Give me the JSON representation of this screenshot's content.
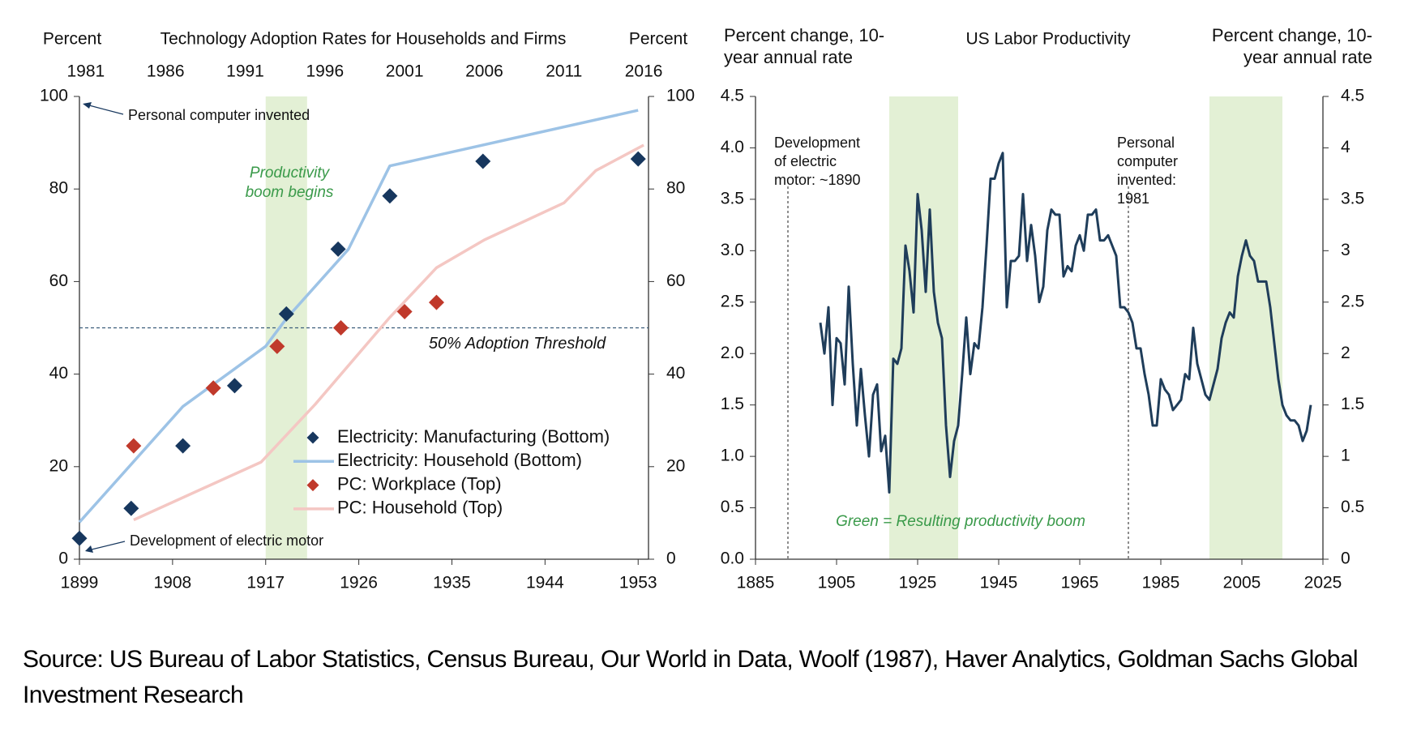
{
  "chart_data": [
    {
      "type": "mixed",
      "title": "Technology Adoption Rates for Households and Firms",
      "ylabel": "Percent",
      "y2label": "Percent",
      "xlim": [
        1899,
        1954
      ],
      "xticks": [
        1899,
        1908,
        1917,
        1926,
        1935,
        1944,
        1953
      ],
      "x2lim": [
        1980.6,
        2016.3
      ],
      "x2ticks": [
        1981,
        1986,
        1991,
        1996,
        2001,
        2006,
        2011,
        2016
      ],
      "ylim": [
        0,
        100
      ],
      "yticks": [
        0,
        20,
        40,
        60,
        80,
        100
      ],
      "y2lim": [
        0,
        100
      ],
      "y2ticks": [
        0,
        20,
        40,
        60,
        80,
        100
      ],
      "legend": "lower right",
      "series": [
        {
          "name": "Electricity: Manufacturing (Bottom)",
          "type": "scatter",
          "color": "#17375e",
          "x": [
            1899,
            1904,
            1909,
            1914,
            1919,
            1924,
            1929,
            1938,
            1953
          ],
          "values": [
            4.5,
            11,
            24.5,
            37.5,
            53,
            67,
            78.5,
            86,
            86.5
          ]
        },
        {
          "name": "Electricity: Household (Bottom)",
          "type": "line",
          "color": "#9dc3e6",
          "x": [
            1899,
            1909,
            1917,
            1919,
            1925,
            1929,
            1953
          ],
          "values": [
            8,
            33,
            46,
            52,
            67,
            85,
            97
          ]
        },
        {
          "name": "PC: Workplace (Top)",
          "type": "scatter",
          "color": "#c0392b",
          "axis": "x2",
          "x": [
            1984,
            1989,
            1993,
            1997,
            2001,
            2003
          ],
          "values": [
            24.5,
            37,
            46,
            50,
            53.5,
            55.5
          ]
        },
        {
          "name": "PC: Household (Top)",
          "type": "line",
          "color": "#f4c7c3",
          "axis": "x2",
          "x": [
            1984,
            1992,
            1995.4,
            2000,
            2003,
            2006,
            2011,
            2013,
            2016
          ],
          "values": [
            8.5,
            21,
            33.5,
            52,
            63,
            69,
            77,
            84,
            89.5
          ]
        }
      ],
      "shaded_regions": [
        {
          "x0": 1917,
          "x1": 1921,
          "color": "#e3f0d5"
        }
      ],
      "reference_line": {
        "value": 50,
        "label": "50% Adoption Threshold"
      },
      "annotations": [
        "Personal computer invented",
        "Productivity boom begins",
        "Development of electric motor"
      ]
    },
    {
      "type": "line",
      "title": "US Labor Productivity",
      "ylabel": "Percent change, 10-year annual rate",
      "y2label": "Percent change, 10-year annual rate",
      "xlim": [
        1885,
        2025
      ],
      "xticks": [
        1885,
        1905,
        1925,
        1945,
        1965,
        1985,
        2005,
        2025
      ],
      "ylim": [
        0,
        4.5
      ],
      "yticks": [
        {
          "value": 0,
          "label": "0.0"
        },
        0.5,
        {
          "value": 1,
          "label": "1.0"
        },
        1.5,
        {
          "value": 2,
          "label": "2.0"
        },
        2.5,
        {
          "value": 3,
          "label": "3.0"
        },
        3.5,
        {
          "value": 4,
          "label": "4.0"
        },
        4.5
      ],
      "y2lim": [
        0,
        4.5
      ],
      "y2ticks": [
        0,
        0.5,
        1,
        1.5,
        2,
        2.5,
        3,
        3.5,
        4,
        4.5
      ],
      "color": "#1f3d5a",
      "x": [
        1901,
        1902,
        1903,
        1904,
        1905,
        1906,
        1907,
        1908,
        1909,
        1910,
        1911,
        1912,
        1913,
        1914,
        1915,
        1916,
        1917,
        1918,
        1919,
        1920,
        1921,
        1922,
        1923,
        1924,
        1925,
        1926,
        1927,
        1928,
        1929,
        1930,
        1931,
        1932,
        1933,
        1934,
        1935,
        1936,
        1937,
        1938,
        1939,
        1940,
        1941,
        1942,
        1943,
        1944,
        1945,
        1946,
        1947,
        1948,
        1949,
        1950,
        1951,
        1952,
        1953,
        1954,
        1955,
        1956,
        1957,
        1958,
        1959,
        1960,
        1961,
        1962,
        1963,
        1964,
        1965,
        1966,
        1967,
        1968,
        1969,
        1970,
        1971,
        1972,
        1973,
        1974,
        1975,
        1976,
        1977,
        1978,
        1979,
        1980,
        1981,
        1982,
        1983,
        1984,
        1985,
        1986,
        1987,
        1988,
        1989,
        1990,
        1991,
        1992,
        1993,
        1994,
        1995,
        1996,
        1997,
        1998,
        1999,
        2000,
        2001,
        2002,
        2003,
        2004,
        2005,
        2006,
        2007,
        2008,
        2009,
        2010,
        2011,
        2012,
        2013,
        2014,
        2015,
        2016,
        2017,
        2018,
        2019,
        2020,
        2021,
        2022
      ],
      "values": [
        2.3,
        2.0,
        2.45,
        1.5,
        2.15,
        2.1,
        1.7,
        2.65,
        1.9,
        1.3,
        1.85,
        1.4,
        1.0,
        1.6,
        1.7,
        1.05,
        1.2,
        0.65,
        1.95,
        1.9,
        2.05,
        3.05,
        2.8,
        2.4,
        3.55,
        3.2,
        2.6,
        3.4,
        2.6,
        2.3,
        2.15,
        1.3,
        0.8,
        1.15,
        1.3,
        1.8,
        2.35,
        1.8,
        2.1,
        2.05,
        2.45,
        3.05,
        3.7,
        3.7,
        3.85,
        3.95,
        2.45,
        2.9,
        2.9,
        2.95,
        3.55,
        2.9,
        3.25,
        2.95,
        2.5,
        2.65,
        3.2,
        3.4,
        3.35,
        3.35,
        2.75,
        2.85,
        2.8,
        3.05,
        3.15,
        3.0,
        3.35,
        3.35,
        3.4,
        3.1,
        3.1,
        3.15,
        3.05,
        2.95,
        2.45,
        2.45,
        2.4,
        2.3,
        2.05,
        2.05,
        1.8,
        1.6,
        1.3,
        1.3,
        1.75,
        1.65,
        1.6,
        1.45,
        1.5,
        1.55,
        1.8,
        1.75,
        2.25,
        1.9,
        1.75,
        1.6,
        1.55,
        1.7,
        1.85,
        2.15,
        2.3,
        2.4,
        2.35,
        2.75,
        2.95,
        3.1,
        2.95,
        2.9,
        2.7,
        2.7,
        2.7,
        2.45,
        2.1,
        1.75,
        1.5,
        1.4,
        1.35,
        1.35,
        1.3,
        1.15,
        1.25,
        1.5
      ],
      "shaded_regions": [
        {
          "x0": 1918,
          "x1": 1935,
          "color": "#e3f0d5"
        },
        {
          "x0": 1997,
          "x1": 2015,
          "color": "#e3f0d5"
        }
      ],
      "reference_lines": [
        1893,
        1977
      ],
      "annotations": [
        "Development of electric motor: ~1890",
        "Personal computer invented: 1981",
        "Green = Resulting productivity boom"
      ]
    }
  ],
  "source": "Source: US Bureau of Labor Statistics, Census Bureau, Our World in Data, Woolf (1987), Haver Analytics, Goldman Sachs Global Investment Research"
}
